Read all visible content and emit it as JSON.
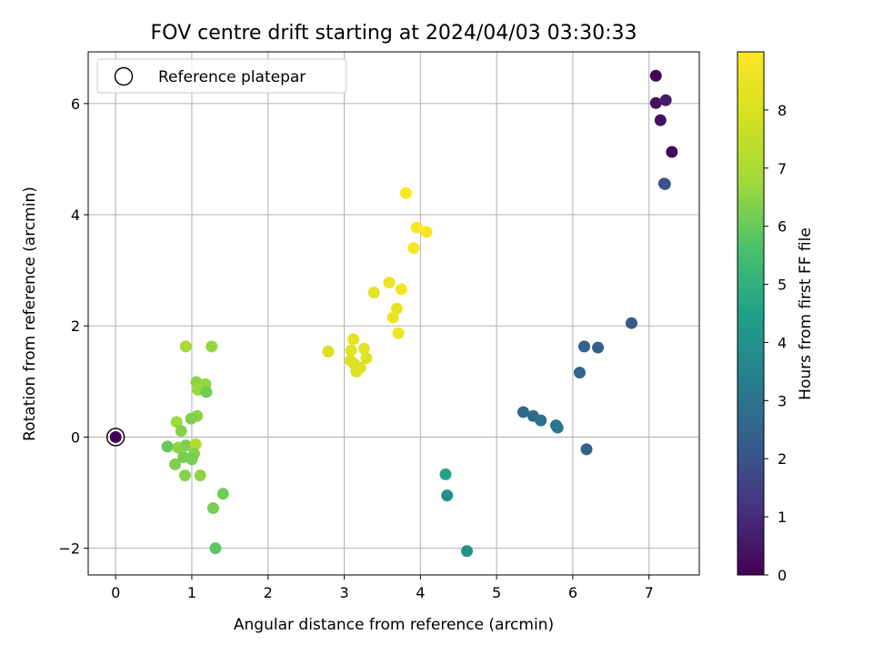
{
  "chart_data": {
    "type": "scatter",
    "title": "FOV centre drift starting at 2024/04/03 03:30:33",
    "xlabel": "Angular distance from reference (arcmin)",
    "ylabel": "Rotation from reference (arcmin)",
    "xlim": [
      -0.36,
      7.66
    ],
    "ylim": [
      -2.48,
      6.93
    ],
    "x_ticks": [
      0,
      1,
      2,
      3,
      4,
      5,
      6,
      7
    ],
    "y_ticks": [
      -2,
      0,
      2,
      4,
      6
    ],
    "x_tick_labels": [
      "0",
      "1",
      "2",
      "3",
      "4",
      "5",
      "6",
      "7"
    ],
    "y_tick_labels": [
      "−2",
      "0",
      "2",
      "4",
      "6"
    ],
    "grid": true,
    "legend": {
      "placement": "top-left",
      "entries": [
        {
          "label": "Reference platepar",
          "marker": "open-circle"
        }
      ]
    },
    "reference_point": {
      "x": 0,
      "y": 0
    },
    "colorbar": {
      "label": "Hours from first FF file",
      "colormap": "viridis",
      "range": [
        0,
        9.0
      ],
      "ticks": [
        0,
        1,
        2,
        3,
        4,
        5,
        6,
        7,
        8
      ],
      "tick_labels": [
        "0",
        "1",
        "2",
        "3",
        "4",
        "5",
        "6",
        "7",
        "8"
      ]
    },
    "points": [
      {
        "x": 7.09,
        "y": 6.5,
        "hours": 0.1
      },
      {
        "x": 7.09,
        "y": 6.01,
        "hours": 0.3
      },
      {
        "x": 7.22,
        "y": 6.06,
        "hours": 0.6
      },
      {
        "x": 7.15,
        "y": 5.7,
        "hours": 0.4
      },
      {
        "x": 7.3,
        "y": 5.13,
        "hours": 0.2
      },
      {
        "x": 7.2,
        "y": 4.56,
        "hours": 1.2
      },
      {
        "x": 7.21,
        "y": 4.55,
        "hours": 2.0
      },
      {
        "x": 6.77,
        "y": 2.05,
        "hours": 2.2
      },
      {
        "x": 6.15,
        "y": 1.63,
        "hours": 2.4
      },
      {
        "x": 6.33,
        "y": 1.61,
        "hours": 2.3
      },
      {
        "x": 6.09,
        "y": 1.16,
        "hours": 2.5
      },
      {
        "x": 5.35,
        "y": 0.45,
        "hours": 2.6
      },
      {
        "x": 5.48,
        "y": 0.38,
        "hours": 2.7
      },
      {
        "x": 5.58,
        "y": 0.3,
        "hours": 2.9
      },
      {
        "x": 5.78,
        "y": 0.21,
        "hours": 3.0
      },
      {
        "x": 5.8,
        "y": 0.17,
        "hours": 3.1
      },
      {
        "x": 6.18,
        "y": -0.22,
        "hours": 2.5
      },
      {
        "x": 4.33,
        "y": -0.67,
        "hours": 4.6
      },
      {
        "x": 4.35,
        "y": -1.05,
        "hours": 3.9
      },
      {
        "x": 4.61,
        "y": -2.05,
        "hours": 4.0
      },
      {
        "x": 3.81,
        "y": 4.39,
        "hours": 9.0
      },
      {
        "x": 3.95,
        "y": 3.77,
        "hours": 8.9
      },
      {
        "x": 4.08,
        "y": 3.69,
        "hours": 8.9
      },
      {
        "x": 3.91,
        "y": 3.4,
        "hours": 8.8
      },
      {
        "x": 3.59,
        "y": 2.78,
        "hours": 8.6
      },
      {
        "x": 3.75,
        "y": 2.66,
        "hours": 8.7
      },
      {
        "x": 3.39,
        "y": 2.6,
        "hours": 8.2
      },
      {
        "x": 3.69,
        "y": 2.31,
        "hours": 8.4
      },
      {
        "x": 3.64,
        "y": 2.15,
        "hours": 8.5
      },
      {
        "x": 3.71,
        "y": 1.87,
        "hours": 8.6
      },
      {
        "x": 3.12,
        "y": 1.76,
        "hours": 8.4
      },
      {
        "x": 2.79,
        "y": 1.54,
        "hours": 8.0
      },
      {
        "x": 3.09,
        "y": 1.56,
        "hours": 8.2
      },
      {
        "x": 3.26,
        "y": 1.59,
        "hours": 8.3
      },
      {
        "x": 3.29,
        "y": 1.42,
        "hours": 8.2
      },
      {
        "x": 3.08,
        "y": 1.38,
        "hours": 8.2
      },
      {
        "x": 3.13,
        "y": 1.32,
        "hours": 8.1
      },
      {
        "x": 3.21,
        "y": 1.25,
        "hours": 8.0
      },
      {
        "x": 3.16,
        "y": 1.18,
        "hours": 8.1
      },
      {
        "x": 0.92,
        "y": 1.63,
        "hours": 6.9
      },
      {
        "x": 1.26,
        "y": 1.63,
        "hours": 6.6
      },
      {
        "x": 1.06,
        "y": 0.99,
        "hours": 6.5
      },
      {
        "x": 1.18,
        "y": 0.95,
        "hours": 6.6
      },
      {
        "x": 1.08,
        "y": 0.85,
        "hours": 6.7
      },
      {
        "x": 1.19,
        "y": 0.81,
        "hours": 6.1
      },
      {
        "x": 1.07,
        "y": 0.38,
        "hours": 6.5
      },
      {
        "x": 0.99,
        "y": 0.33,
        "hours": 6.3
      },
      {
        "x": 0.8,
        "y": 0.27,
        "hours": 6.7
      },
      {
        "x": 0.86,
        "y": 0.11,
        "hours": 6.4
      },
      {
        "x": 0.68,
        "y": -0.17,
        "hours": 6.0
      },
      {
        "x": 0.82,
        "y": -0.19,
        "hours": 6.5
      },
      {
        "x": 0.92,
        "y": -0.15,
        "hours": 6.3
      },
      {
        "x": 1.05,
        "y": -0.13,
        "hours": 7.1
      },
      {
        "x": 1.03,
        "y": -0.3,
        "hours": 6.4
      },
      {
        "x": 0.89,
        "y": -0.36,
        "hours": 6.2
      },
      {
        "x": 1.0,
        "y": -0.4,
        "hours": 6.2
      },
      {
        "x": 0.78,
        "y": -0.49,
        "hours": 6.3
      },
      {
        "x": 0.91,
        "y": -0.69,
        "hours": 6.4
      },
      {
        "x": 1.11,
        "y": -0.69,
        "hours": 6.5
      },
      {
        "x": 1.41,
        "y": -1.02,
        "hours": 6.1
      },
      {
        "x": 1.28,
        "y": -1.28,
        "hours": 6.2
      },
      {
        "x": 1.31,
        "y": -2.0,
        "hours": 5.9
      },
      {
        "x": 0.0,
        "y": 0.0,
        "hours": 0.0
      }
    ]
  }
}
